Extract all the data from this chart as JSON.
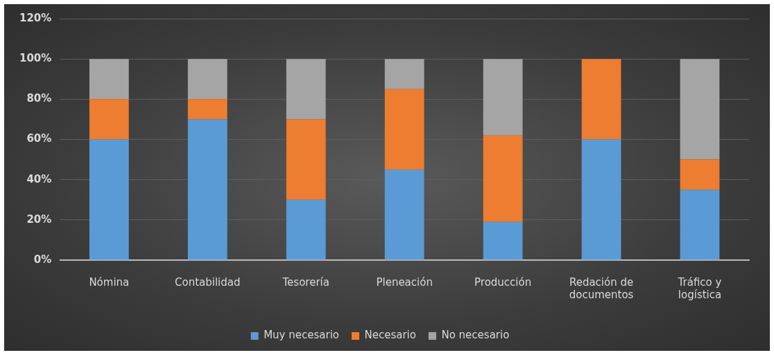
{
  "chart_data": {
    "type": "bar",
    "stacked": true,
    "categories": [
      "Nómina",
      "Contabilidad",
      "Tesorería",
      "Pleneación",
      "Producción",
      "Redación de documentos",
      "Tráfico y logística"
    ],
    "series": [
      {
        "name": "Muy necesario",
        "color": "#5b9bd5",
        "values": [
          60,
          70,
          30,
          45,
          19,
          60,
          35
        ]
      },
      {
        "name": "Necesario",
        "color": "#ed7d31",
        "values": [
          20,
          10,
          40,
          40,
          43,
          40,
          15
        ]
      },
      {
        "name": "No necesario",
        "color": "#a5a5a5",
        "values": [
          20,
          20,
          30,
          15,
          38,
          0,
          50
        ]
      }
    ],
    "ylim": [
      0,
      120
    ],
    "yticks": [
      {
        "value": 0,
        "label": "0%"
      },
      {
        "value": 20,
        "label": "20%"
      },
      {
        "value": 40,
        "label": "40%"
      },
      {
        "value": 60,
        "label": "60%"
      },
      {
        "value": 80,
        "label": "80%"
      },
      {
        "value": 100,
        "label": "100%"
      },
      {
        "value": 120,
        "label": "120%"
      }
    ],
    "grid": "y",
    "legend": "bottom"
  }
}
